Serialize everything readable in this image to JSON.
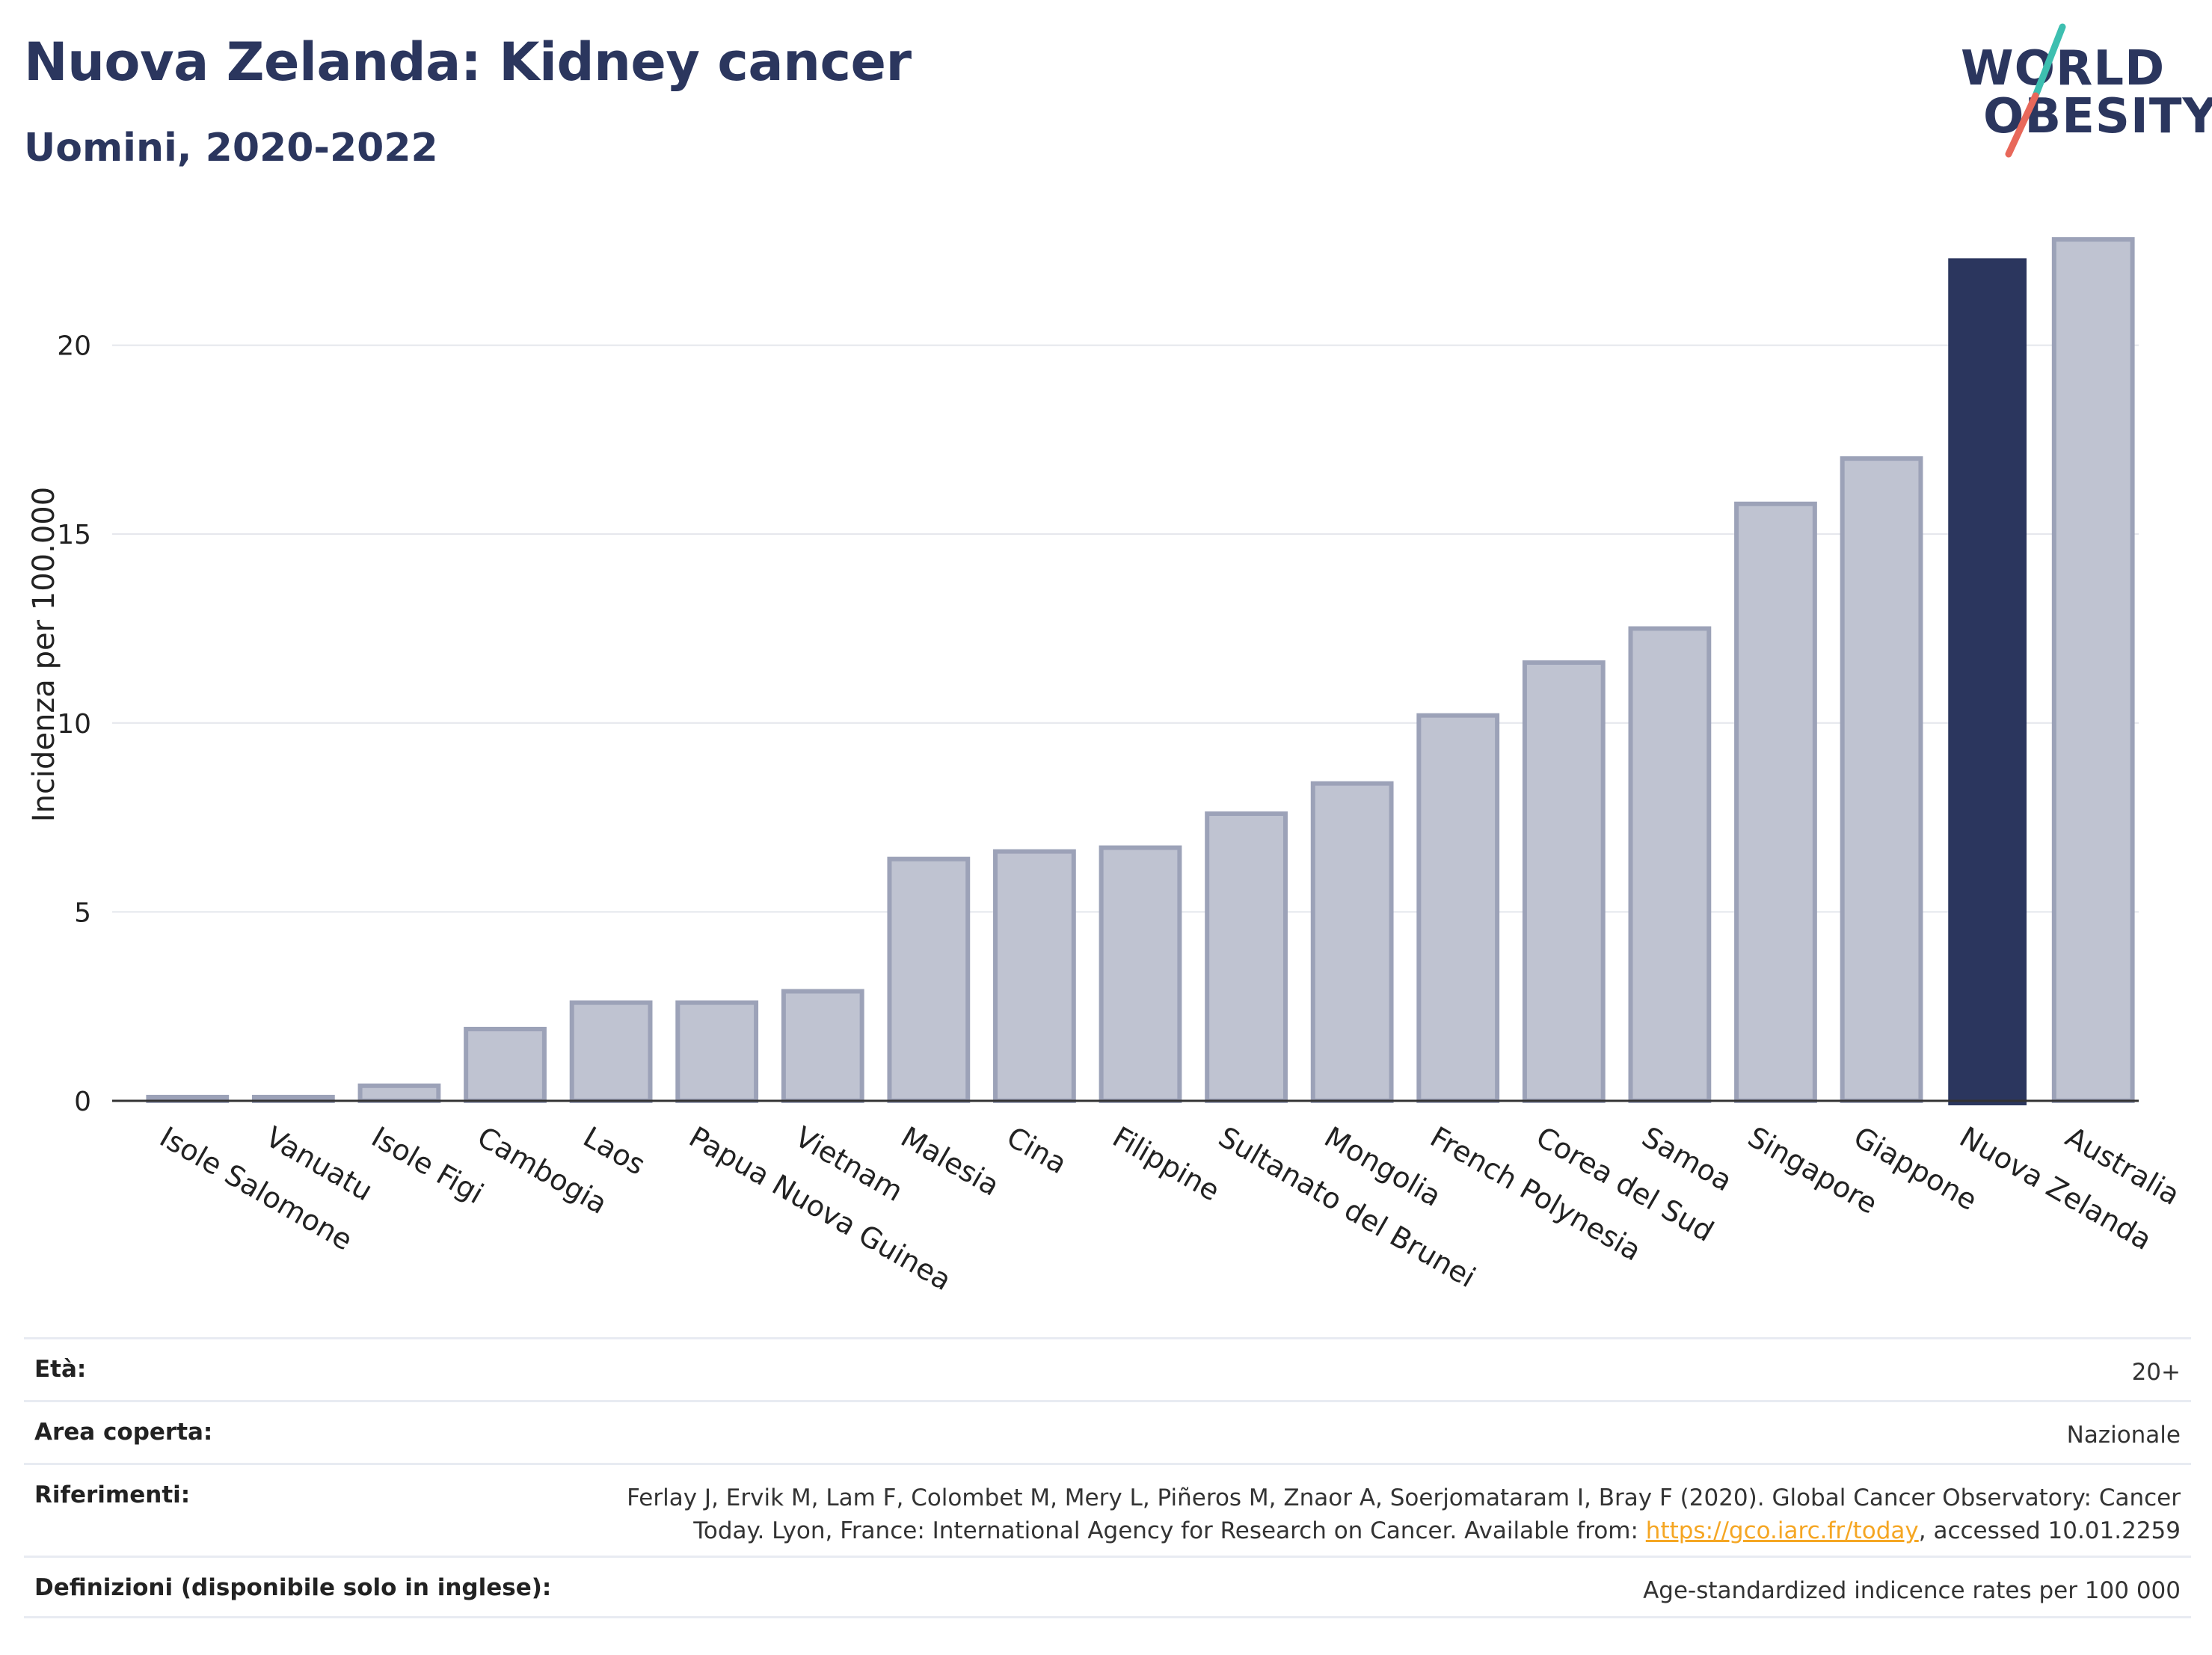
{
  "header": {
    "title": "Nuova Zelanda: Kidney cancer",
    "subtitle": "Uomini, 2020-2022"
  },
  "logo": {
    "line1": "WORLD",
    "line2": "OBESITY",
    "accent_teal": "#3dbfb0",
    "accent_coral": "#e8685a"
  },
  "colors": {
    "bar_default": "#bfc3d1",
    "bar_default_border": "#9ca2b8",
    "bar_highlight": "#2b365e",
    "grid": "#e4e6ec",
    "axis": "#333333"
  },
  "chart_data": {
    "type": "bar",
    "ylabel": "Incidenza per 100.000",
    "ylim": [
      0,
      23
    ],
    "yticks": [
      0,
      5,
      10,
      15,
      20
    ],
    "grid": true,
    "highlight": "Nuova Zelanda",
    "categories": [
      "Isole Salomone",
      "Vanuatu",
      "Isole Figi",
      "Cambogia",
      "Laos",
      "Papua Nuova Guinea",
      "Vietnam",
      "Malesia",
      "Cina",
      "Filippine",
      "Sultanato del Brunei",
      "Mongolia",
      "French Polynesia",
      "Corea del Sud",
      "Samoa",
      "Singapore",
      "Giappone",
      "Nuova Zelanda",
      "Australia"
    ],
    "values": [
      0.1,
      0.1,
      0.4,
      1.9,
      2.6,
      2.6,
      2.9,
      6.4,
      6.6,
      6.7,
      7.6,
      8.4,
      10.2,
      11.6,
      12.5,
      15.8,
      17.0,
      22.3,
      22.8
    ]
  },
  "meta": {
    "age_label": "Età:",
    "age_value": "20+",
    "area_label": "Area coperta:",
    "area_value": "Nazionale",
    "ref_label": "Riferimenti:",
    "ref_text_1": "Ferlay J, Ervik M, Lam F, Colombet M, Mery L, Piñeros M, Znaor A, Soerjomataram I, Bray F (2020). Global Cancer Observatory: Cancer Today. Lyon, France: International Agency for Research on Cancer. Available from: ",
    "ref_link": "https://gco.iarc.fr/today",
    "ref_text_2": ", accessed 10.01.2259",
    "def_label": "Definizioni (disponibile solo in inglese):",
    "def_value": "Age-standardized indicence rates per 100 000"
  }
}
